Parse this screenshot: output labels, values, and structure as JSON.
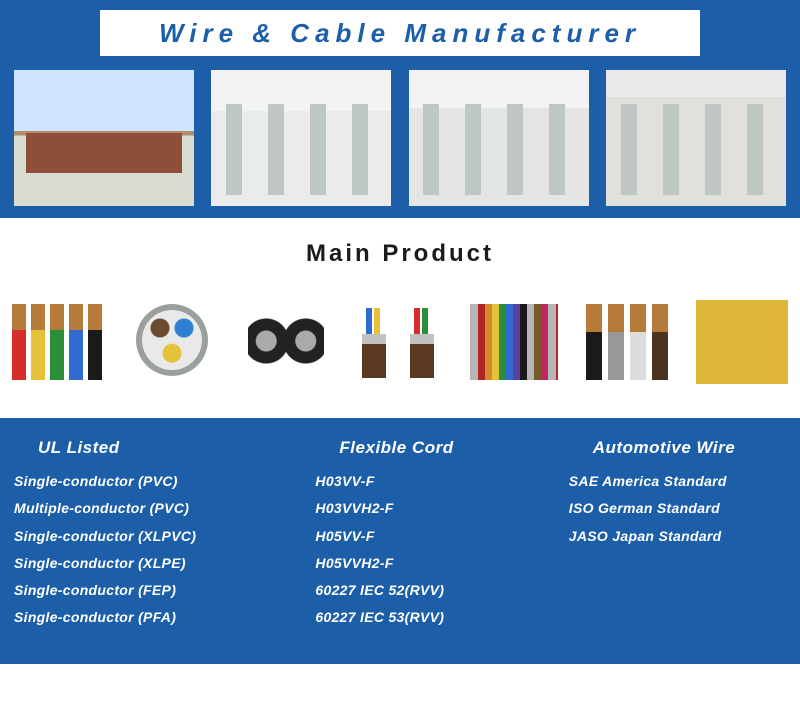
{
  "banner": {
    "title": "Wire & Cable Manufacturer",
    "background_color": "#1c5fa8",
    "title_bar_bg": "#ffffff",
    "title_color": "#1c5fa8",
    "title_fontsize": 26,
    "title_letter_spacing": 6,
    "photos": [
      {
        "name": "factory-exterior"
      },
      {
        "name": "factory-floor-1"
      },
      {
        "name": "factory-floor-2"
      },
      {
        "name": "factory-floor-3"
      }
    ]
  },
  "main_product": {
    "title": "Main Product",
    "title_color": "#1b1b1b",
    "title_fontsize": 24,
    "products": [
      {
        "name": "insulated-wires-multicolor"
      },
      {
        "name": "round-multicore-cable"
      },
      {
        "name": "figure-8-black-cable"
      },
      {
        "name": "shielded-twin-cable"
      },
      {
        "name": "flat-ribbon-multicolor"
      },
      {
        "name": "single-core-wires-4"
      },
      {
        "name": "wire-spools-stacked"
      }
    ]
  },
  "categories": {
    "background_color": "#1c5fa8",
    "text_color": "#ffffff",
    "columns": [
      {
        "title": "UL Listed",
        "items": [
          "Single-conductor (PVC)",
          "Multiple-conductor (PVC)",
          "Single-conductor (XLPVC)",
          "Single-conductor (XLPE)",
          "Single-conductor (FEP)",
          "Single-conductor (PFA)"
        ]
      },
      {
        "title": "Flexible Cord",
        "items": [
          "H03VV-F",
          "H03VVH2-F",
          "H05VV-F",
          "H05VVH2-F",
          "60227 IEC 52(RVV)",
          "60227 IEC 53(RVV)"
        ]
      },
      {
        "title": "Automotive Wire",
        "items": [
          "SAE America Standard",
          "ISO German Standard",
          "JASO Japan Standard"
        ]
      }
    ]
  }
}
